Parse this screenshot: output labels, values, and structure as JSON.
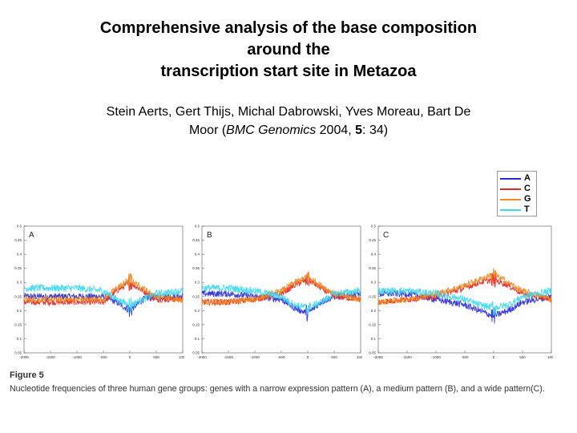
{
  "title_lines": [
    "Comprehensive analysis of the base composition",
    "around the",
    "transcription start site in Metazoa"
  ],
  "authors": {
    "line1": "Stein Aerts, Gert Thijs, Michal Dabrowski, Yves Moreau, Bart De",
    "line2_pre": "Moor (",
    "journal": "BMC Genomics",
    "year": " 2004, ",
    "volume": "5",
    "pages": ": 34)"
  },
  "figure": {
    "label": "Figure 5",
    "caption": "Nucleotide frequencies of three human gene groups: genes with a narrow expression pattern (A), a medium pattern (B), and a wide pattern(C)."
  },
  "colors": {
    "A": "#2a2ad8",
    "C": "#e8281e",
    "G": "#f08a1e",
    "T": "#3fd8ef"
  },
  "chart_data": [
    {
      "type": "line",
      "panel_label": "A",
      "x_ticks": [
        "-2000",
        "-1500",
        "-1000",
        "-500",
        "0",
        "500",
        "1000"
      ],
      "y_ticks": [
        "0.05",
        "0.1",
        "0.15",
        "0.2",
        "0.25",
        "0.3",
        "0.35",
        "0.4",
        "0.45",
        "0.5"
      ],
      "xlim": [
        -2000,
        1000
      ],
      "ylim": [
        0.05,
        0.5
      ],
      "legend": [
        "A",
        "C",
        "G",
        "T"
      ],
      "series": [
        {
          "name": "A",
          "x": [
            -2000,
            -1500,
            -1000,
            -500,
            -250,
            0,
            250,
            500,
            1000
          ],
          "values": [
            0.25,
            0.25,
            0.25,
            0.25,
            0.23,
            0.2,
            0.24,
            0.25,
            0.25
          ]
        },
        {
          "name": "C",
          "x": [
            -2000,
            -1500,
            -1000,
            -500,
            -250,
            0,
            250,
            500,
            1000
          ],
          "values": [
            0.23,
            0.23,
            0.23,
            0.23,
            0.27,
            0.3,
            0.27,
            0.24,
            0.24
          ]
        },
        {
          "name": "G",
          "x": [
            -2000,
            -1500,
            -1000,
            -500,
            -250,
            0,
            250,
            500,
            1000
          ],
          "values": [
            0.24,
            0.24,
            0.24,
            0.24,
            0.28,
            0.31,
            0.28,
            0.25,
            0.24
          ]
        },
        {
          "name": "T",
          "x": [
            -2000,
            -1500,
            -1000,
            -500,
            -250,
            0,
            250,
            500,
            1000
          ],
          "values": [
            0.28,
            0.28,
            0.28,
            0.27,
            0.24,
            0.22,
            0.24,
            0.26,
            0.27
          ]
        }
      ]
    },
    {
      "type": "line",
      "panel_label": "B",
      "x_ticks": [
        "-2000",
        "-1500",
        "-1000",
        "-500",
        "0",
        "500",
        "1000"
      ],
      "y_ticks": [
        "0.05",
        "0.1",
        "0.15",
        "0.2",
        "0.25",
        "0.3",
        "0.35",
        "0.4",
        "0.45",
        "0.5"
      ],
      "xlim": [
        -2000,
        1000
      ],
      "ylim": [
        0.05,
        0.5
      ],
      "legend": [
        "A",
        "C",
        "G",
        "T"
      ],
      "series": [
        {
          "name": "A",
          "x": [
            -2000,
            -1500,
            -1000,
            -500,
            -250,
            0,
            250,
            500,
            1000
          ],
          "values": [
            0.26,
            0.26,
            0.25,
            0.24,
            0.21,
            0.19,
            0.23,
            0.25,
            0.26
          ]
        },
        {
          "name": "C",
          "x": [
            -2000,
            -1500,
            -1000,
            -500,
            -250,
            0,
            250,
            500,
            1000
          ],
          "values": [
            0.23,
            0.23,
            0.24,
            0.26,
            0.29,
            0.31,
            0.28,
            0.25,
            0.24
          ]
        },
        {
          "name": "G",
          "x": [
            -2000,
            -1500,
            -1000,
            -500,
            -250,
            0,
            250,
            500,
            1000
          ],
          "values": [
            0.23,
            0.23,
            0.24,
            0.27,
            0.3,
            0.32,
            0.29,
            0.26,
            0.24
          ]
        },
        {
          "name": "T",
          "x": [
            -2000,
            -1500,
            -1000,
            -500,
            -250,
            0,
            250,
            500,
            1000
          ],
          "values": [
            0.28,
            0.28,
            0.27,
            0.25,
            0.22,
            0.21,
            0.23,
            0.26,
            0.27
          ]
        }
      ]
    },
    {
      "type": "line",
      "panel_label": "C",
      "x_ticks": [
        "-2000",
        "-1500",
        "-1000",
        "-500",
        "0",
        "500",
        "1000"
      ],
      "y_ticks": [
        "0.05",
        "0.1",
        "0.15",
        "0.2",
        "0.25",
        "0.3",
        "0.35",
        "0.4",
        "0.45",
        "0.5"
      ],
      "xlim": [
        -2000,
        1000
      ],
      "ylim": [
        0.05,
        0.5
      ],
      "legend": [
        "A",
        "C",
        "G",
        "T"
      ],
      "series": [
        {
          "name": "A",
          "x": [
            -2000,
            -1500,
            -1000,
            -500,
            -250,
            0,
            250,
            500,
            1000
          ],
          "values": [
            0.26,
            0.26,
            0.24,
            0.22,
            0.2,
            0.18,
            0.2,
            0.23,
            0.25
          ]
        },
        {
          "name": "C",
          "x": [
            -2000,
            -1500,
            -1000,
            -500,
            -250,
            0,
            250,
            500,
            1000
          ],
          "values": [
            0.23,
            0.24,
            0.25,
            0.28,
            0.3,
            0.31,
            0.29,
            0.26,
            0.24
          ]
        },
        {
          "name": "G",
          "x": [
            -2000,
            -1500,
            -1000,
            -500,
            -250,
            0,
            250,
            500,
            1000
          ],
          "values": [
            0.23,
            0.24,
            0.26,
            0.29,
            0.31,
            0.33,
            0.3,
            0.27,
            0.24
          ]
        },
        {
          "name": "T",
          "x": [
            -2000,
            -1500,
            -1000,
            -500,
            -250,
            0,
            250,
            500,
            1000
          ],
          "values": [
            0.27,
            0.27,
            0.26,
            0.24,
            0.22,
            0.21,
            0.22,
            0.25,
            0.27
          ]
        }
      ]
    }
  ]
}
